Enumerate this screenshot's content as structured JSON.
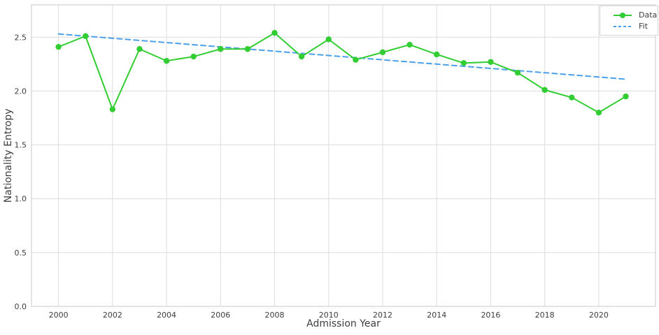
{
  "colors": {
    "grid": "#dcdcdc",
    "spine": "#c8c8c8",
    "text": "#3d3d3d",
    "legend_border": "#d6d6d6",
    "background": "#ffffff"
  },
  "chart_data": {
    "type": "line",
    "title": "",
    "xlabel": "Admission Year",
    "ylabel": "Nationality Entropy",
    "x": [
      2000,
      2001,
      2002,
      2003,
      2004,
      2005,
      2006,
      2007,
      2008,
      2009,
      2010,
      2011,
      2012,
      2013,
      2014,
      2015,
      2016,
      2017,
      2018,
      2019,
      2020,
      2021
    ],
    "series": [
      {
        "name": "Data",
        "color": "#32cd32",
        "line": "solid",
        "marker": "circle",
        "values": [
          2.41,
          2.51,
          1.83,
          2.39,
          2.28,
          2.32,
          2.39,
          2.39,
          2.54,
          2.32,
          2.48,
          2.29,
          2.36,
          2.43,
          2.34,
          2.26,
          2.27,
          2.17,
          2.01,
          1.94,
          1.8,
          1.95
        ]
      },
      {
        "name": "Fit",
        "color": "#4a9fe9",
        "line": "dashed",
        "marker": "none",
        "x": [
          2000,
          2021
        ],
        "values": [
          2.53,
          2.11
        ]
      }
    ],
    "xlim": [
      1999,
      2022.1
    ],
    "ylim": [
      0,
      2.8
    ],
    "xticks": [
      2000,
      2002,
      2004,
      2006,
      2008,
      2010,
      2012,
      2014,
      2016,
      2018,
      2020
    ],
    "yticks": [
      0,
      0.5,
      1.0,
      1.5,
      2.0,
      2.5
    ],
    "xtick_labels": [
      "2000",
      "2002",
      "2004",
      "2006",
      "2008",
      "2010",
      "2012",
      "2014",
      "2016",
      "2018",
      "2020"
    ],
    "ytick_labels": [
      "0.0",
      "0.5",
      "1.0",
      "1.5",
      "2.0",
      "2.5"
    ],
    "grid": true,
    "legend": {
      "position": "upper right",
      "entries": [
        "Data",
        "Fit"
      ]
    }
  }
}
